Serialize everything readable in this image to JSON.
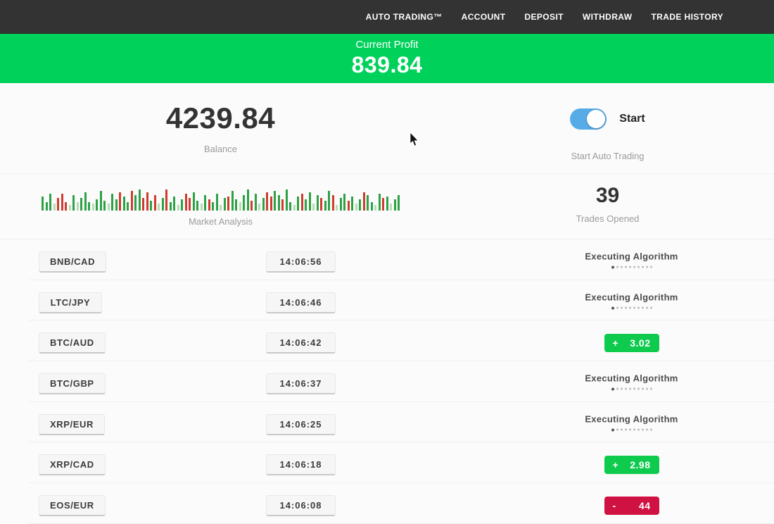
{
  "nav": {
    "items": [
      {
        "label": "AUTO TRADING™"
      },
      {
        "label": "ACCOUNT"
      },
      {
        "label": "DEPOSIT"
      },
      {
        "label": "WITHDRAW"
      },
      {
        "label": "TRADE HISTORY"
      }
    ]
  },
  "profit_banner": {
    "label": "Current Profit",
    "value": "839.84",
    "bg": "#00d15b"
  },
  "stats": {
    "balance_value": "4239.84",
    "balance_label": "Balance",
    "toggle_label": "Start",
    "toggle_caption": "Start Auto Trading",
    "toggle_state": "on",
    "toggle_color": "#57ace7",
    "market_label": "Market Analysis",
    "trades_value": "39",
    "trades_label": "Trades Opened"
  },
  "labels": {
    "executing": "Executing Algorithm"
  },
  "rows": [
    {
      "pair": "BNB/CAD",
      "time": "14:06:56",
      "status": "executing"
    },
    {
      "pair": "LTC/JPY",
      "time": "14:06:46",
      "status": "executing"
    },
    {
      "pair": "BTC/AUD",
      "time": "14:06:42",
      "status": "profit",
      "sign": "+",
      "value": "3.02"
    },
    {
      "pair": "BTC/GBP",
      "time": "14:06:37",
      "status": "executing"
    },
    {
      "pair": "XRP/EUR",
      "time": "14:06:25",
      "status": "executing"
    },
    {
      "pair": "XRP/CAD",
      "time": "14:06:18",
      "status": "profit",
      "sign": "+",
      "value": "2.98"
    },
    {
      "pair": "EOS/EUR",
      "time": "14:06:08",
      "status": "loss",
      "sign": "-",
      "value": "44"
    }
  ],
  "colors": {
    "navbar_bg": "#333333",
    "banner_green": "#00d15b",
    "profit_badge_green": "#0ecb4e",
    "loss_badge_red": "#d01243",
    "toggle_blue": "#57ace7",
    "chip_bg": "#f6f6f6",
    "label_gray": "#9b9b9b"
  },
  "chart_data": {
    "type": "bar",
    "title": "Market Analysis",
    "xlabel": "",
    "ylabel": "",
    "legend": false,
    "grid": false,
    "note": "dense candlestick-style mini bar strip, baseline at bottom, heights in px est.",
    "color_map": {
      "g": "#2ca245",
      "lg": "#b7dcb5",
      "r": "#cf3b2f"
    },
    "heights": [
      20,
      12,
      24,
      10,
      18,
      24,
      12,
      8,
      22,
      12,
      18,
      26,
      12,
      10,
      16,
      28,
      14,
      10,
      24,
      16,
      26,
      20,
      12,
      28,
      22,
      30,
      18,
      26,
      14,
      22,
      10,
      18,
      30,
      12,
      20,
      8,
      16,
      24,
      18,
      26,
      14,
      10,
      22,
      16,
      12,
      24,
      8,
      18,
      20,
      28,
      16,
      12,
      22,
      30,
      14,
      24,
      10,
      18,
      26,
      20,
      28,
      22,
      16,
      30,
      12,
      8,
      20,
      24,
      16,
      26,
      10,
      22,
      18,
      14,
      28,
      22,
      8,
      18,
      24,
      14,
      20,
      10,
      16,
      26,
      22,
      12,
      8,
      24,
      18,
      20,
      10,
      16,
      22
    ],
    "colors": [
      "g",
      "g",
      "g",
      "lg",
      "r",
      "r",
      "r",
      "lg",
      "g",
      "lg",
      "g",
      "g",
      "g",
      "lg",
      "g",
      "g",
      "g",
      "lg",
      "g",
      "g",
      "r",
      "g",
      "g",
      "r",
      "g",
      "g",
      "r",
      "r",
      "g",
      "r",
      "lg",
      "g",
      "r",
      "g",
      "g",
      "lg",
      "g",
      "r",
      "r",
      "g",
      "g",
      "lg",
      "g",
      "r",
      "g",
      "g",
      "lg",
      "g",
      "r",
      "g",
      "g",
      "lg",
      "g",
      "g",
      "r",
      "g",
      "lg",
      "g",
      "r",
      "r",
      "g",
      "g",
      "r",
      "g",
      "g",
      "lg",
      "g",
      "r",
      "g",
      "g",
      "lg",
      "g",
      "r",
      "g",
      "g",
      "r",
      "lg",
      "g",
      "g",
      "r",
      "g",
      "lg",
      "g",
      "r",
      "g",
      "g",
      "lg",
      "g",
      "r",
      "g",
      "lg",
      "g",
      "g"
    ]
  }
}
